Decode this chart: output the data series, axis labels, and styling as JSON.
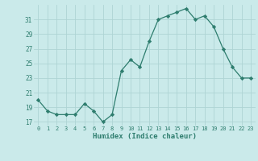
{
  "x": [
    0,
    1,
    2,
    3,
    4,
    5,
    6,
    7,
    8,
    9,
    10,
    11,
    12,
    13,
    14,
    15,
    16,
    17,
    18,
    19,
    20,
    21,
    22,
    23
  ],
  "y": [
    20.0,
    18.5,
    18.0,
    18.0,
    18.0,
    19.5,
    18.5,
    17.0,
    18.0,
    24.0,
    25.5,
    24.5,
    28.0,
    31.0,
    31.5,
    32.0,
    32.5,
    31.0,
    31.5,
    30.0,
    27.0,
    24.5,
    23.0,
    23.0
  ],
  "bg_color": "#caeaea",
  "grid_color": "#aed4d4",
  "line_color": "#2e7d6e",
  "marker_color": "#2e7d6e",
  "xlabel": "Humidex (Indice chaleur)",
  "yticks": [
    17,
    19,
    21,
    23,
    25,
    27,
    29,
    31
  ],
  "xticks": [
    0,
    1,
    2,
    3,
    4,
    5,
    6,
    7,
    8,
    9,
    10,
    11,
    12,
    13,
    14,
    15,
    16,
    17,
    18,
    19,
    20,
    21,
    22,
    23
  ],
  "ylim": [
    16.5,
    33.0
  ],
  "xlim": [
    -0.5,
    23.5
  ]
}
